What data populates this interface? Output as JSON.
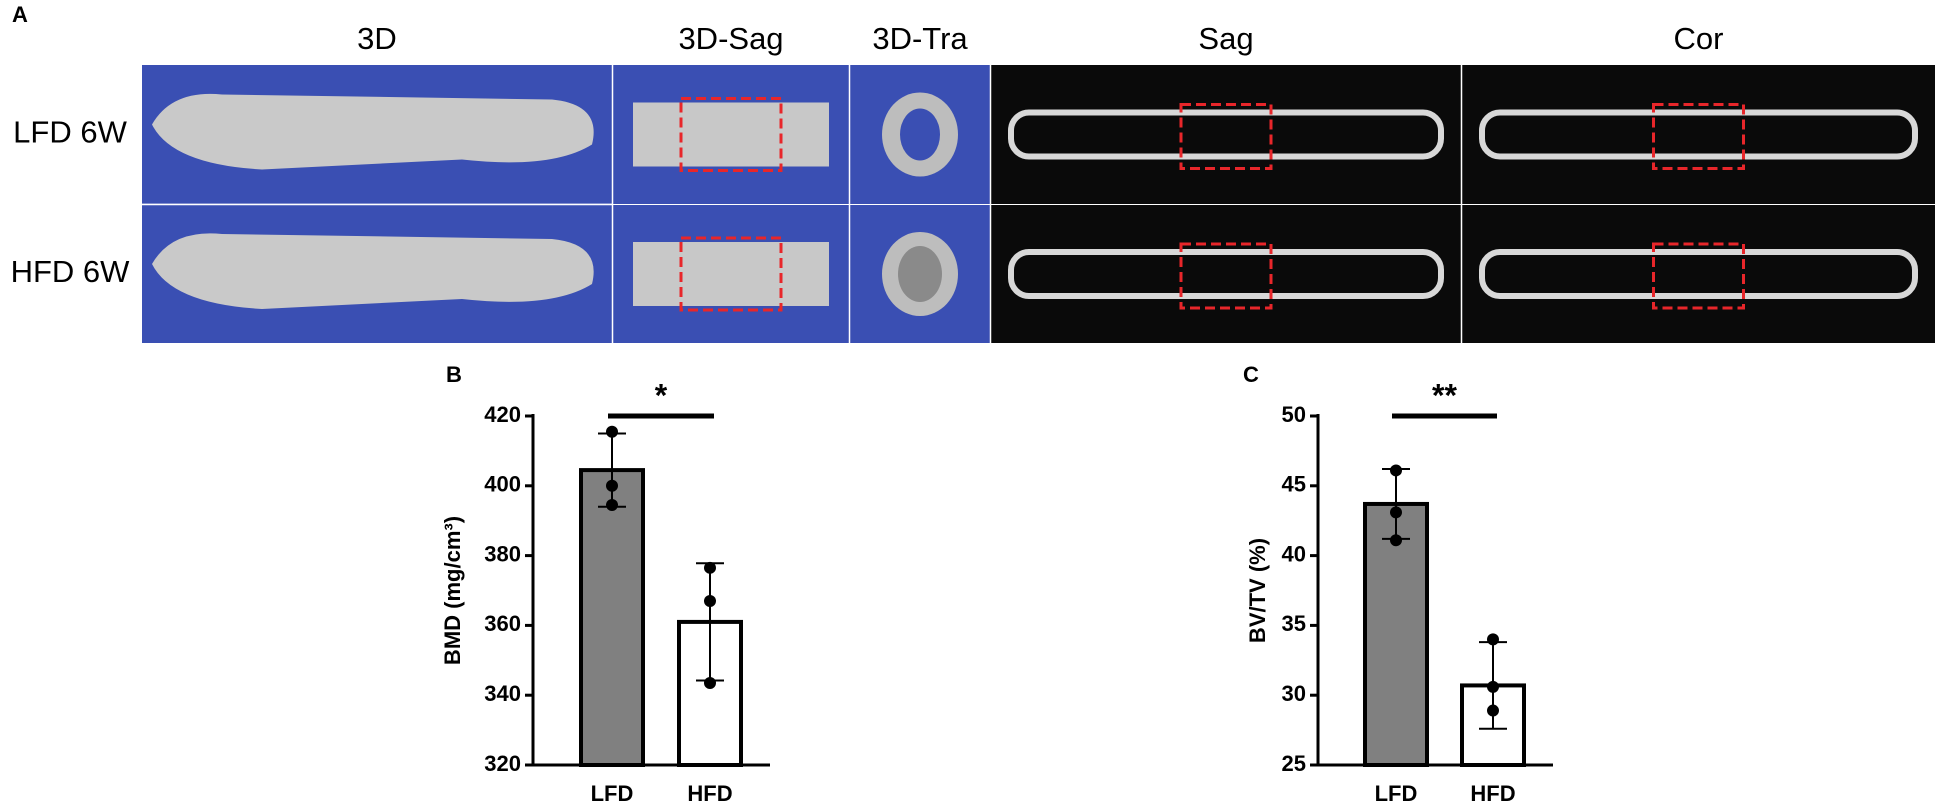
{
  "panel_labels": [
    "A",
    "B",
    "C"
  ],
  "image_panel": {
    "columns": [
      "3D",
      "3D-Sag",
      "3D-Tra",
      "Sag",
      "Cor"
    ],
    "rows": [
      "LFD 6W",
      "HFD 6W"
    ]
  },
  "chart_data": [
    {
      "type": "bar",
      "y_label": "BMD (mg/cm³)",
      "categories": [
        "LFD",
        "HFD"
      ],
      "values": [
        404.5,
        361
      ],
      "errors": [
        10.5,
        16.8
      ],
      "points": [
        [
          415.5,
          400,
          394.5
        ],
        [
          376.5,
          367,
          343.5
        ]
      ],
      "colors": [
        "#808080",
        "#ffffff"
      ],
      "significance": "*",
      "ylim": [
        320,
        420
      ],
      "yticks": [
        320,
        340,
        360,
        380,
        400,
        420
      ]
    },
    {
      "type": "bar",
      "y_label": "BV/TV (%)",
      "categories": [
        "LFD",
        "HFD"
      ],
      "values": [
        43.7,
        30.7
      ],
      "errors": [
        2.5,
        3.1
      ],
      "points": [
        [
          46.1,
          43.1,
          41.1
        ],
        [
          34.0,
          30.6,
          28.9
        ]
      ],
      "colors": [
        "#808080",
        "#ffffff"
      ],
      "significance": "**",
      "ylim": [
        25,
        50
      ],
      "yticks": [
        25,
        30,
        35,
        40,
        45,
        50
      ]
    }
  ]
}
